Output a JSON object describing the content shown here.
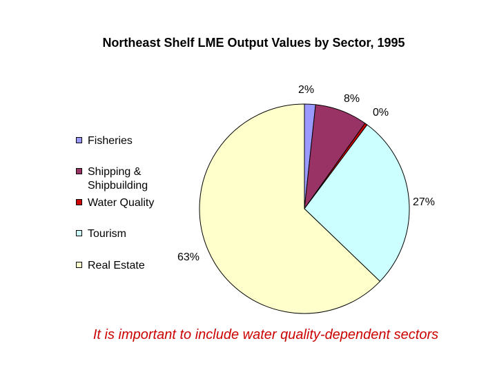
{
  "chart_data": {
    "type": "pie",
    "title": "Northeast Shelf LME Output Values by Sector, 1995",
    "categories": [
      "Fisheries",
      "Shipping & Shipbuilding",
      "Water Quality",
      "Tourism",
      "Real Estate"
    ],
    "values": [
      1.7,
      8.1,
      0.4,
      27,
      62.8
    ],
    "labels": [
      "2%",
      "8%",
      "0%",
      "27%",
      "63%"
    ],
    "colors": [
      "#9999ff",
      "#993366",
      "#cc0000",
      "#ccffff",
      "#ffffcc"
    ],
    "legend_position": "left",
    "caption": "It is important to include water quality-dependent sectors"
  }
}
